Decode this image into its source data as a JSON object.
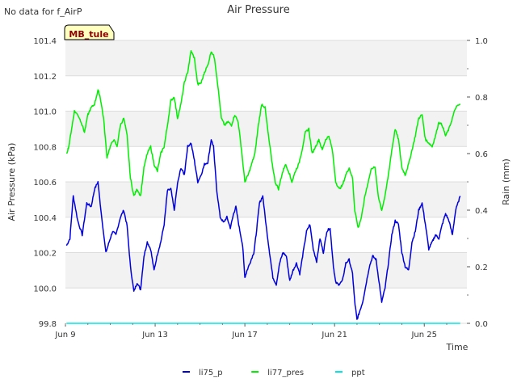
{
  "chart_data": {
    "type": "line",
    "title": "Air Pressure",
    "no_data_note": "No data for f_AirP",
    "station_badge": "MB_tule",
    "xlabel": "Time",
    "ylabel_left": "Air Pressure (kPa)",
    "ylabel_right": "Rain (mm)",
    "x_ticks": [
      {
        "day": 9,
        "label": "Jun 9"
      },
      {
        "day": 13,
        "label": "Jun 13"
      },
      {
        "day": 17,
        "label": "Jun 17"
      },
      {
        "day": 21,
        "label": "Jun 21"
      },
      {
        "day": 25,
        "label": "Jun 25"
      }
    ],
    "xlim": [
      9.0,
      26.9
    ],
    "ylim_left": [
      99.8,
      101.4
    ],
    "y_ticks_left": [
      "99.8",
      "100.0",
      "100.2",
      "100.4",
      "100.6",
      "100.8",
      "101.0",
      "101.2",
      "101.4"
    ],
    "ylim_right": [
      0.0,
      1.0
    ],
    "y_ticks_right": [
      "0.0",
      "0.2",
      "0.4",
      "0.6",
      "0.8",
      "1.0"
    ],
    "grid": true,
    "legend_position": "bottom-center",
    "series": [
      {
        "name": "li75_p",
        "axis": "left",
        "color": "#0000dd",
        "points": [
          [
            9.05,
            100.24
          ],
          [
            9.2,
            100.28
          ],
          [
            9.35,
            100.52
          ],
          [
            9.55,
            100.38
          ],
          [
            9.75,
            100.3
          ],
          [
            9.95,
            100.48
          ],
          [
            10.15,
            100.46
          ],
          [
            10.3,
            100.56
          ],
          [
            10.45,
            100.6
          ],
          [
            10.6,
            100.42
          ],
          [
            10.8,
            100.2
          ],
          [
            10.95,
            100.26
          ],
          [
            11.1,
            100.32
          ],
          [
            11.25,
            100.3
          ],
          [
            11.45,
            100.4
          ],
          [
            11.6,
            100.44
          ],
          [
            11.75,
            100.35
          ],
          [
            11.9,
            100.12
          ],
          [
            12.05,
            99.98
          ],
          [
            12.2,
            100.03
          ],
          [
            12.35,
            99.99
          ],
          [
            12.5,
            100.18
          ],
          [
            12.65,
            100.26
          ],
          [
            12.8,
            100.22
          ],
          [
            12.95,
            100.1
          ],
          [
            13.1,
            100.19
          ],
          [
            13.25,
            100.26
          ],
          [
            13.4,
            100.36
          ],
          [
            13.55,
            100.55
          ],
          [
            13.7,
            100.56
          ],
          [
            13.85,
            100.44
          ],
          [
            14.0,
            100.59
          ],
          [
            14.15,
            100.68
          ],
          [
            14.3,
            100.64
          ],
          [
            14.45,
            100.8
          ],
          [
            14.6,
            100.82
          ],
          [
            14.75,
            100.72
          ],
          [
            14.9,
            100.6
          ],
          [
            15.05,
            100.64
          ],
          [
            15.2,
            100.7
          ],
          [
            15.35,
            100.71
          ],
          [
            15.5,
            100.84
          ],
          [
            15.6,
            100.8
          ],
          [
            15.75,
            100.55
          ],
          [
            15.9,
            100.4
          ],
          [
            16.05,
            100.37
          ],
          [
            16.2,
            100.4
          ],
          [
            16.35,
            100.34
          ],
          [
            16.5,
            100.42
          ],
          [
            16.6,
            100.46
          ],
          [
            16.75,
            100.34
          ],
          [
            16.9,
            100.24
          ],
          [
            17.0,
            100.06
          ],
          [
            17.1,
            100.1
          ],
          [
            17.25,
            100.15
          ],
          [
            17.4,
            100.2
          ],
          [
            17.5,
            100.3
          ],
          [
            17.65,
            100.48
          ],
          [
            17.8,
            100.52
          ],
          [
            17.95,
            100.35
          ],
          [
            18.1,
            100.2
          ],
          [
            18.25,
            100.06
          ],
          [
            18.4,
            100.02
          ],
          [
            18.55,
            100.14
          ],
          [
            18.7,
            100.2
          ],
          [
            18.85,
            100.18
          ],
          [
            19.0,
            100.04
          ],
          [
            19.15,
            100.1
          ],
          [
            19.3,
            100.14
          ],
          [
            19.45,
            100.08
          ],
          [
            19.6,
            100.2
          ],
          [
            19.75,
            100.32
          ],
          [
            19.9,
            100.36
          ],
          [
            20.05,
            100.22
          ],
          [
            20.2,
            100.15
          ],
          [
            20.35,
            100.28
          ],
          [
            20.5,
            100.2
          ],
          [
            20.65,
            100.32
          ],
          [
            20.8,
            100.34
          ],
          [
            20.95,
            100.12
          ],
          [
            21.05,
            100.03
          ],
          [
            21.2,
            100.02
          ],
          [
            21.35,
            100.04
          ],
          [
            21.5,
            100.14
          ],
          [
            21.65,
            100.16
          ],
          [
            21.8,
            100.08
          ],
          [
            21.9,
            99.92
          ],
          [
            22.0,
            99.82
          ],
          [
            22.1,
            99.86
          ],
          [
            22.25,
            99.92
          ],
          [
            22.4,
            100.02
          ],
          [
            22.55,
            100.12
          ],
          [
            22.7,
            100.18
          ],
          [
            22.85,
            100.16
          ],
          [
            23.0,
            100.02
          ],
          [
            23.1,
            99.92
          ],
          [
            23.25,
            100.0
          ],
          [
            23.4,
            100.14
          ],
          [
            23.55,
            100.3
          ],
          [
            23.7,
            100.38
          ],
          [
            23.85,
            100.36
          ],
          [
            24.0,
            100.2
          ],
          [
            24.15,
            100.12
          ],
          [
            24.3,
            100.1
          ],
          [
            24.45,
            100.26
          ],
          [
            24.6,
            100.32
          ],
          [
            24.75,
            100.44
          ],
          [
            24.9,
            100.48
          ],
          [
            25.05,
            100.36
          ],
          [
            25.2,
            100.22
          ],
          [
            25.35,
            100.26
          ],
          [
            25.5,
            100.3
          ],
          [
            25.65,
            100.28
          ],
          [
            25.8,
            100.36
          ],
          [
            25.95,
            100.42
          ],
          [
            26.1,
            100.38
          ],
          [
            26.25,
            100.3
          ],
          [
            26.4,
            100.44
          ],
          [
            26.6,
            100.52
          ]
        ]
      },
      {
        "name": "li77_pres",
        "axis": "left",
        "color": "#00ee00",
        "points": [
          [
            9.05,
            100.76
          ],
          [
            9.15,
            100.8
          ],
          [
            9.3,
            100.92
          ],
          [
            9.4,
            101.0
          ],
          [
            9.55,
            100.98
          ],
          [
            9.7,
            100.94
          ],
          [
            9.85,
            100.88
          ],
          [
            10.0,
            100.98
          ],
          [
            10.15,
            101.02
          ],
          [
            10.3,
            101.04
          ],
          [
            10.45,
            101.12
          ],
          [
            10.55,
            101.08
          ],
          [
            10.7,
            100.96
          ],
          [
            10.85,
            100.74
          ],
          [
            11.0,
            100.8
          ],
          [
            11.15,
            100.84
          ],
          [
            11.3,
            100.8
          ],
          [
            11.45,
            100.92
          ],
          [
            11.6,
            100.96
          ],
          [
            11.75,
            100.86
          ],
          [
            11.9,
            100.62
          ],
          [
            12.05,
            100.52
          ],
          [
            12.2,
            100.56
          ],
          [
            12.35,
            100.52
          ],
          [
            12.5,
            100.68
          ],
          [
            12.65,
            100.76
          ],
          [
            12.8,
            100.8
          ],
          [
            12.95,
            100.7
          ],
          [
            13.1,
            100.66
          ],
          [
            13.25,
            100.76
          ],
          [
            13.4,
            100.8
          ],
          [
            13.55,
            100.92
          ],
          [
            13.7,
            101.06
          ],
          [
            13.85,
            101.08
          ],
          [
            14.0,
            100.96
          ],
          [
            14.15,
            101.04
          ],
          [
            14.3,
            101.16
          ],
          [
            14.45,
            101.22
          ],
          [
            14.6,
            101.34
          ],
          [
            14.75,
            101.3
          ],
          [
            14.9,
            101.15
          ],
          [
            15.05,
            101.16
          ],
          [
            15.2,
            101.22
          ],
          [
            15.35,
            101.26
          ],
          [
            15.5,
            101.34
          ],
          [
            15.65,
            101.3
          ],
          [
            15.8,
            101.14
          ],
          [
            15.95,
            100.96
          ],
          [
            16.1,
            100.92
          ],
          [
            16.25,
            100.94
          ],
          [
            16.4,
            100.92
          ],
          [
            16.55,
            100.98
          ],
          [
            16.7,
            100.94
          ],
          [
            16.85,
            100.78
          ],
          [
            17.0,
            100.6
          ],
          [
            17.15,
            100.64
          ],
          [
            17.3,
            100.7
          ],
          [
            17.45,
            100.76
          ],
          [
            17.6,
            100.92
          ],
          [
            17.75,
            101.04
          ],
          [
            17.9,
            101.02
          ],
          [
            18.05,
            100.86
          ],
          [
            18.2,
            100.72
          ],
          [
            18.35,
            100.6
          ],
          [
            18.5,
            100.56
          ],
          [
            18.65,
            100.64
          ],
          [
            18.8,
            100.7
          ],
          [
            18.95,
            100.66
          ],
          [
            19.1,
            100.6
          ],
          [
            19.25,
            100.66
          ],
          [
            19.4,
            100.7
          ],
          [
            19.55,
            100.78
          ],
          [
            19.7,
            100.88
          ],
          [
            19.85,
            100.9
          ],
          [
            20.0,
            100.76
          ],
          [
            20.15,
            100.8
          ],
          [
            20.3,
            100.84
          ],
          [
            20.45,
            100.78
          ],
          [
            20.6,
            100.84
          ],
          [
            20.75,
            100.86
          ],
          [
            20.9,
            100.78
          ],
          [
            21.05,
            100.6
          ],
          [
            21.2,
            100.56
          ],
          [
            21.35,
            100.58
          ],
          [
            21.5,
            100.64
          ],
          [
            21.65,
            100.68
          ],
          [
            21.8,
            100.62
          ],
          [
            21.9,
            100.44
          ],
          [
            22.05,
            100.34
          ],
          [
            22.2,
            100.4
          ],
          [
            22.35,
            100.52
          ],
          [
            22.5,
            100.6
          ],
          [
            22.65,
            100.68
          ],
          [
            22.8,
            100.68
          ],
          [
            22.95,
            100.52
          ],
          [
            23.1,
            100.44
          ],
          [
            23.25,
            100.52
          ],
          [
            23.4,
            100.64
          ],
          [
            23.55,
            100.78
          ],
          [
            23.7,
            100.9
          ],
          [
            23.85,
            100.84
          ],
          [
            24.0,
            100.68
          ],
          [
            24.15,
            100.64
          ],
          [
            24.3,
            100.7
          ],
          [
            24.45,
            100.78
          ],
          [
            24.6,
            100.86
          ],
          [
            24.75,
            100.96
          ],
          [
            24.9,
            100.98
          ],
          [
            25.05,
            100.84
          ],
          [
            25.2,
            100.82
          ],
          [
            25.35,
            100.8
          ],
          [
            25.5,
            100.86
          ],
          [
            25.65,
            100.94
          ],
          [
            25.8,
            100.92
          ],
          [
            25.95,
            100.86
          ],
          [
            26.1,
            100.9
          ],
          [
            26.25,
            100.96
          ],
          [
            26.4,
            101.02
          ],
          [
            26.6,
            101.04
          ]
        ]
      },
      {
        "name": "ppt",
        "axis": "right",
        "color": "#00e5e5",
        "points": [
          [
            9.05,
            0.0
          ],
          [
            26.6,
            0.0
          ]
        ]
      }
    ]
  }
}
